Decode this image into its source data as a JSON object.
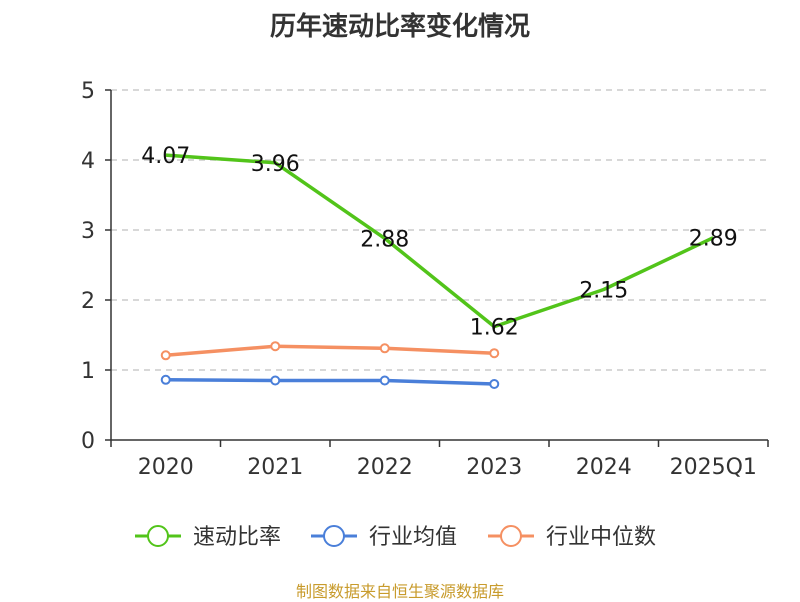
{
  "chart_data": {
    "type": "line",
    "title": "历年速动比率变化情况",
    "categories": [
      "2020",
      "2021",
      "2022",
      "2023",
      "2024",
      "2025Q1"
    ],
    "ylim": [
      0,
      5
    ],
    "yticks": [
      0,
      1,
      2,
      3,
      4,
      5
    ],
    "grid": "horizontal dashed",
    "legend_position": "bottom",
    "series": [
      {
        "name": "速动比率",
        "color": "#52c41a",
        "values": [
          4.07,
          3.96,
          2.88,
          1.62,
          2.15,
          2.89
        ],
        "labels": [
          "4.07",
          "3.96",
          "2.88",
          "1.62",
          "2.15",
          "2.89"
        ],
        "markers": false
      },
      {
        "name": "行业均值",
        "color": "#4a7fd9",
        "values": [
          0.86,
          0.85,
          0.85,
          0.8,
          null,
          null
        ],
        "markers": true
      },
      {
        "name": "行业中位数",
        "color": "#f59062",
        "values": [
          1.21,
          1.34,
          1.31,
          1.24,
          null,
          null
        ],
        "markers": true
      }
    ]
  },
  "footer": "制图数据来自恒生聚源数据库"
}
